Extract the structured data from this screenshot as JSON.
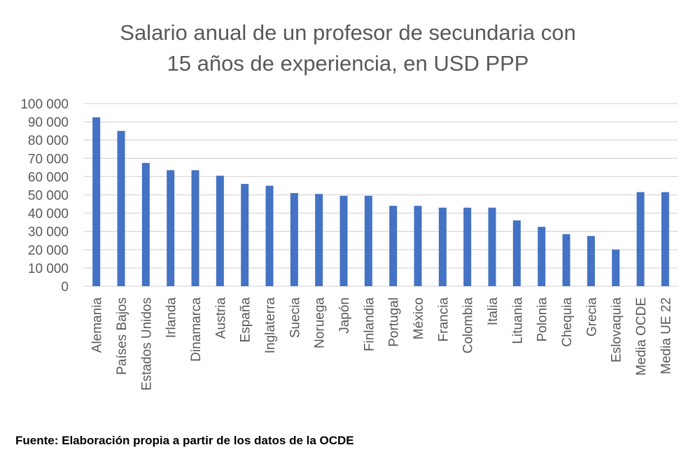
{
  "chart_data": {
    "type": "bar",
    "title": [
      "Salario anual de un profesor de secundaria con",
      "15 años de experiencia, en USD PPP"
    ],
    "xlabel": "",
    "ylabel": "",
    "ylim": [
      0,
      100000
    ],
    "yticks": [
      0,
      10000,
      20000,
      30000,
      40000,
      50000,
      60000,
      70000,
      80000,
      90000,
      100000
    ],
    "ytick_labels": [
      "0",
      "10 000",
      "20 000",
      "30 000",
      "40 000",
      "50 000",
      "60 000",
      "70 000",
      "80 000",
      "90 000",
      "100 000"
    ],
    "grid": true,
    "legend": "none",
    "bar_color": "#4472c4",
    "categories": [
      "Alemania",
      "Países Bajos",
      "Estados Unidos",
      "Irlanda",
      "Dinamarca",
      "Austria",
      "España",
      "Inglaterra",
      "Suecia",
      "Noruega",
      "Japón",
      "Finlandia",
      "Portugal",
      "México",
      "Francia",
      "Colombia",
      "Italia",
      "Lituania",
      "Polonia",
      "Chequia",
      "Grecia",
      "Eslovaquia",
      "Media OCDE",
      "Media UE 22"
    ],
    "values": [
      92500,
      85000,
      67500,
      63500,
      63500,
      60500,
      56000,
      55000,
      51000,
      50500,
      49500,
      49500,
      44000,
      44000,
      43000,
      43000,
      43000,
      36000,
      32500,
      28500,
      27500,
      20000,
      51500,
      51500
    ]
  },
  "source": "Fuente: Elaboración propia a partir de los datos de la OCDE"
}
